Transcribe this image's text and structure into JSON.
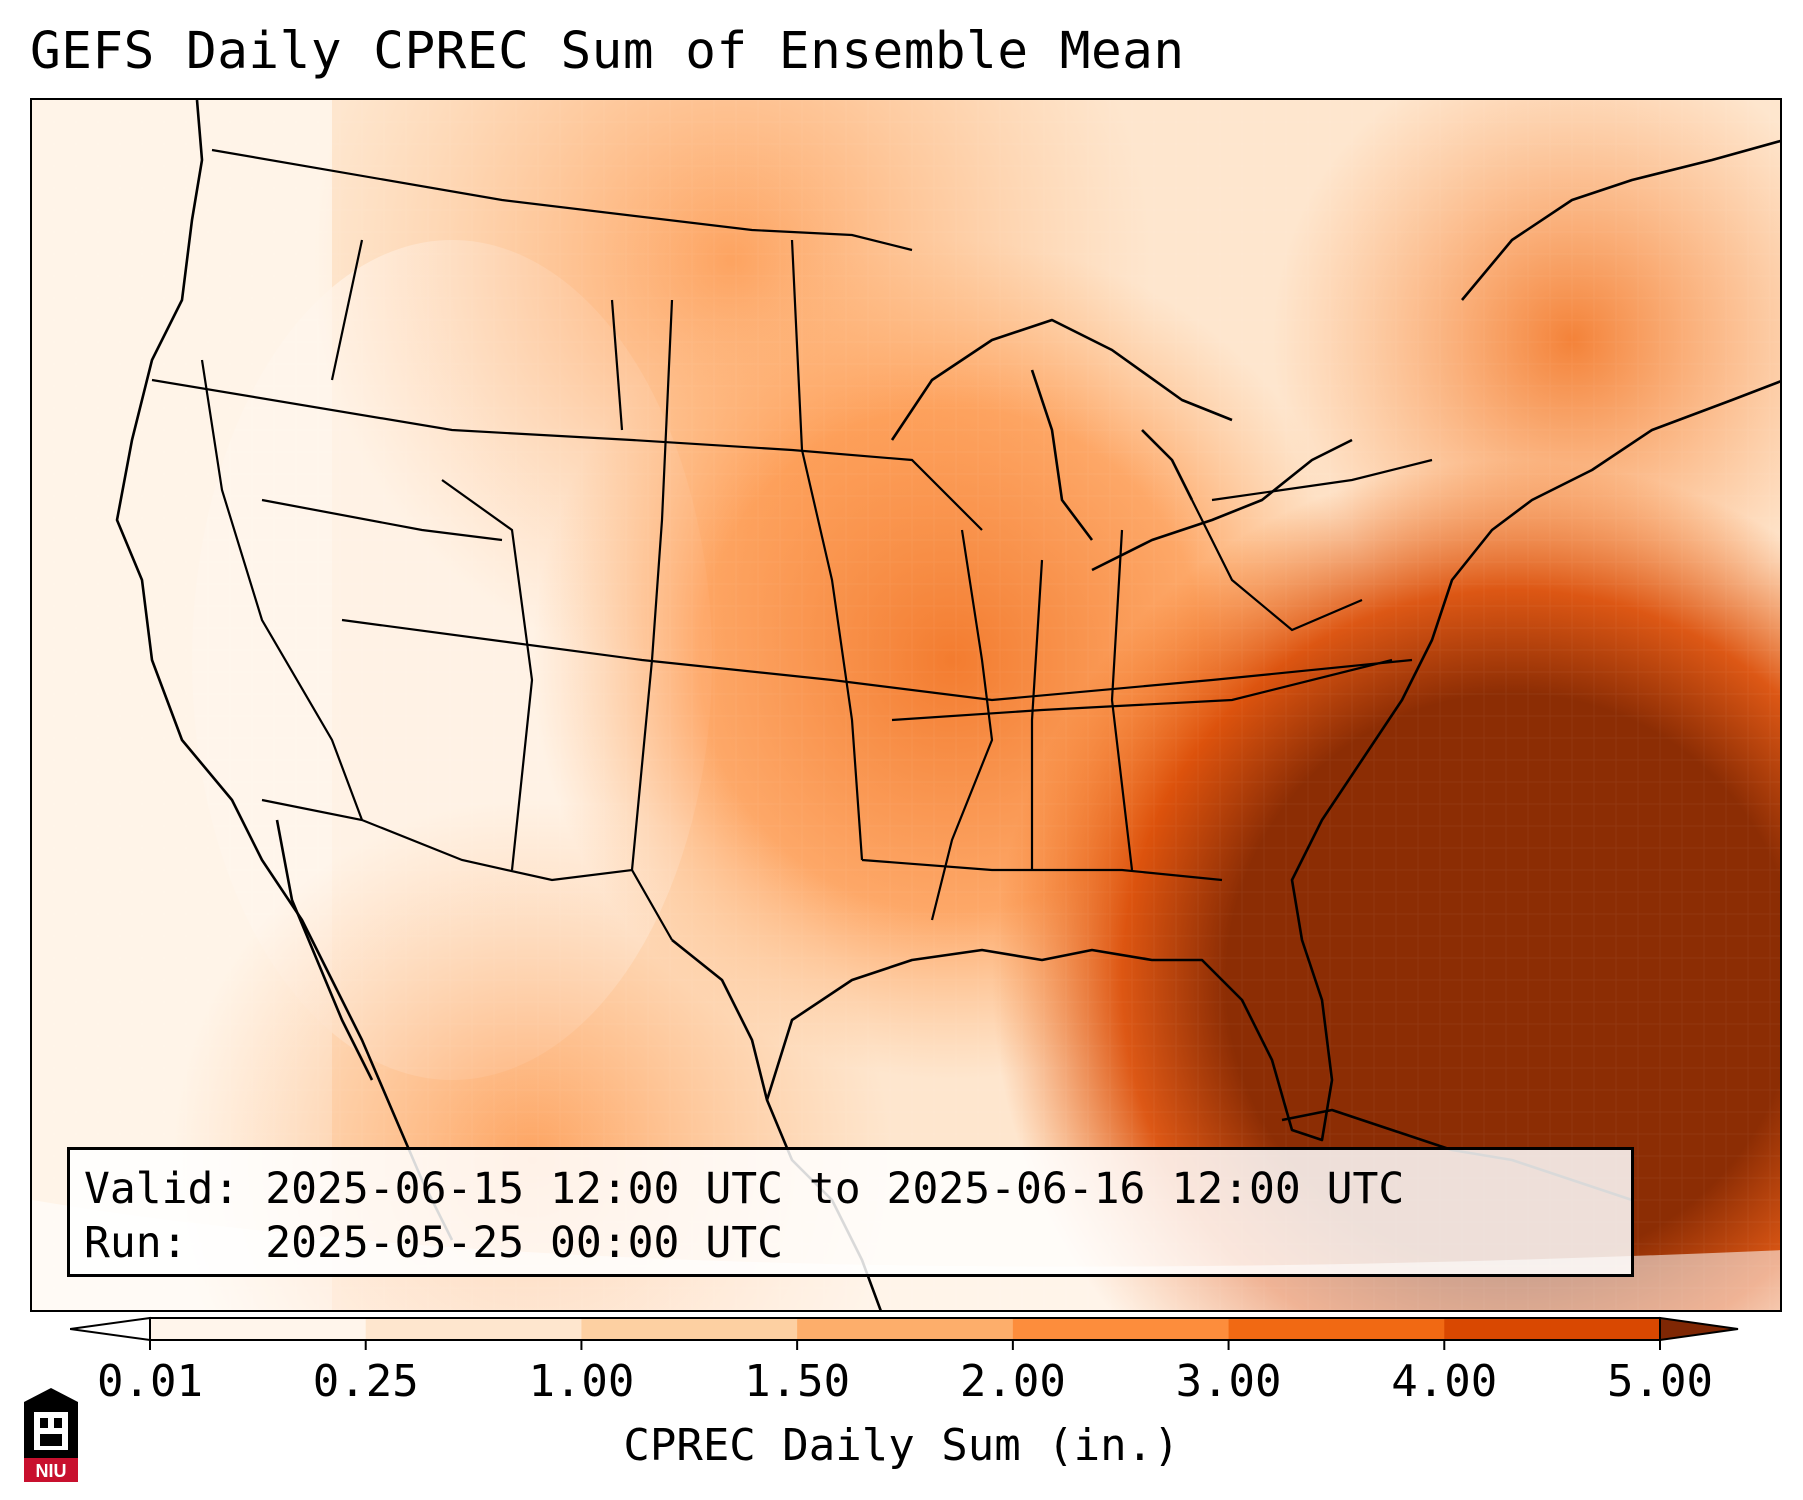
{
  "title": "GEFS Daily CPREC Sum of Ensemble Mean",
  "info": {
    "valid_label": "Valid:",
    "valid_value": "2025-06-15 12:00 UTC to 2025-06-16 12:00 UTC",
    "run_label": "Run:",
    "run_value": "2025-05-25 00:00 UTC"
  },
  "colorbar": {
    "label": "CPREC Daily Sum (in.)",
    "ticks": [
      "0.01",
      "0.25",
      "1.00",
      "1.50",
      "2.00",
      "3.00",
      "4.00",
      "5.00"
    ],
    "colors": [
      "#fff5eb",
      "#fee6ce",
      "#fdd0a2",
      "#fdae6b",
      "#fd8d3c",
      "#f16913",
      "#d94801",
      "#8c2d04"
    ],
    "under_color": "#ffffff",
    "over_color": "#7f2704"
  },
  "logo": {
    "text": "NIU",
    "colors": {
      "red": "#c8102e",
      "black": "#000000"
    }
  }
}
